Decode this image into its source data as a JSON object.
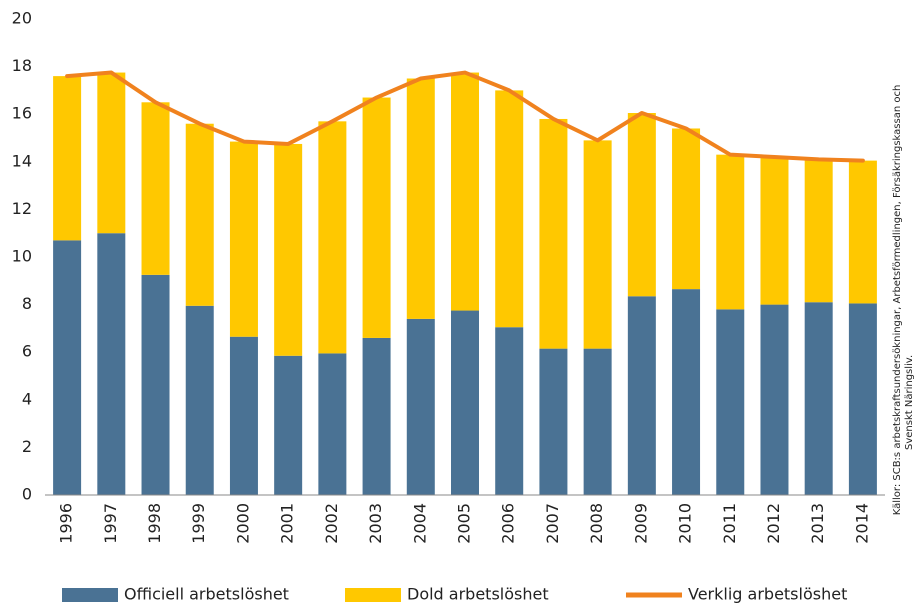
{
  "chart_data": {
    "type": "stacked-bar-line",
    "categories": [
      "1996",
      "1997",
      "1998",
      "1999",
      "2000",
      "2001",
      "2002",
      "2003",
      "2004",
      "2005",
      "2006",
      "2007",
      "2008",
      "2009",
      "2010",
      "2011",
      "2012",
      "2013",
      "2014"
    ],
    "series": [
      {
        "name": "Officiell arbetslöshet",
        "color": "#4a7294",
        "kind": "bar",
        "values": [
          10.7,
          11.0,
          9.25,
          7.95,
          6.65,
          5.85,
          5.95,
          6.6,
          7.4,
          7.75,
          7.05,
          6.15,
          6.15,
          8.35,
          8.65,
          7.8,
          8.0,
          8.1,
          8.05
        ]
      },
      {
        "name": "Dold arbetslöshet",
        "color": "#ffc800",
        "kind": "bar",
        "values": [
          6.9,
          6.75,
          7.25,
          7.65,
          8.2,
          8.9,
          9.75,
          10.1,
          10.1,
          10.0,
          9.95,
          9.65,
          8.75,
          7.7,
          6.75,
          6.5,
          6.2,
          6.0,
          6.0
        ]
      },
      {
        "name": "Verklig arbetslöshet",
        "color": "#f0821e",
        "kind": "line",
        "values": [
          17.6,
          17.75,
          16.5,
          15.6,
          14.85,
          14.75,
          15.7,
          16.7,
          17.5,
          17.75,
          17.0,
          15.8,
          14.9,
          16.05,
          15.4,
          14.3,
          14.2,
          14.1,
          14.05
        ]
      }
    ],
    "ylim": [
      0,
      20
    ],
    "yticks": [
      0,
      2,
      4,
      6,
      8,
      10,
      12,
      14,
      16,
      18,
      20
    ],
    "grid": false,
    "source": [
      "Källor: SCB:s arbetskraftsundersökningar, Arbetsförmedlingen, Försäkringskassan och",
      "Svenskt Näringsliv."
    ]
  }
}
